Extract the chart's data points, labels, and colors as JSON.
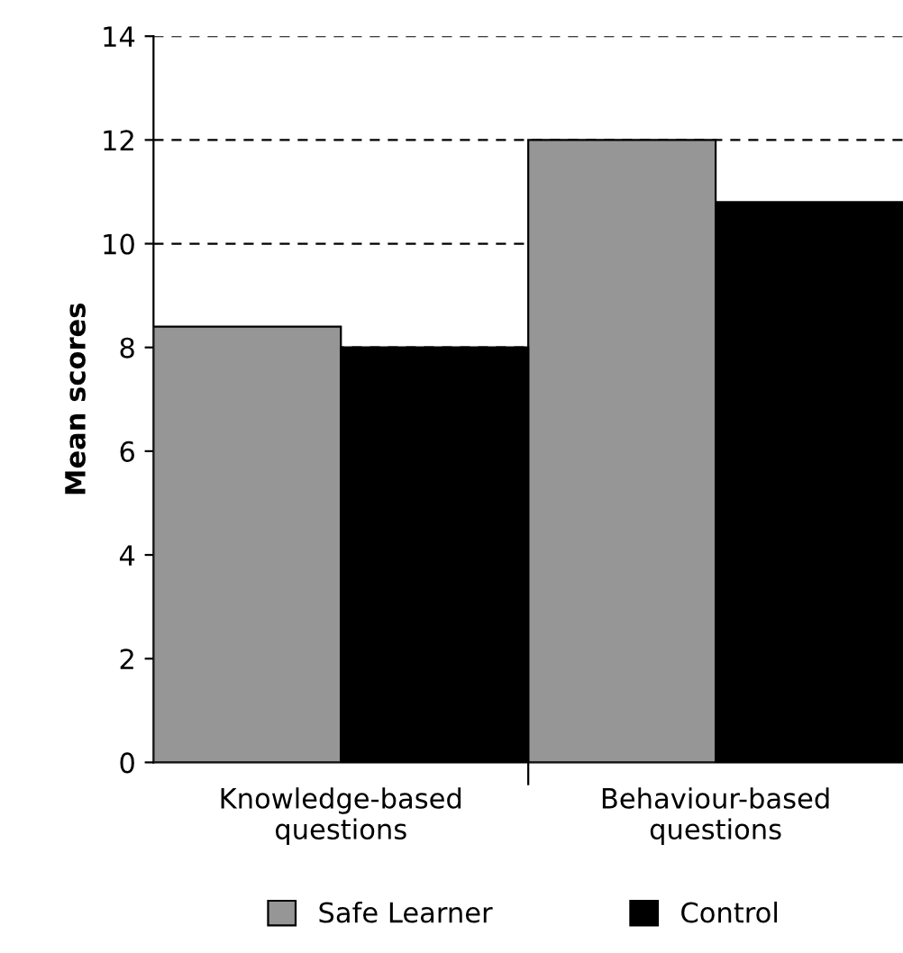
{
  "chart_data": {
    "type": "bar",
    "ylabel": "Mean scores",
    "categories": [
      "Knowledge-based\nquestions",
      "Behaviour-based\nquestions"
    ],
    "series": [
      {
        "name": "Safe Learner",
        "color": "#969696",
        "values": [
          8.4,
          12.0
        ]
      },
      {
        "name": "Control",
        "color": "#000000",
        "values": [
          8.0,
          10.8
        ]
      }
    ],
    "ylim": [
      0,
      14
    ],
    "yticks": [
      0,
      2,
      4,
      6,
      8,
      10,
      12,
      14
    ],
    "grid": "y",
    "legend": "bottom"
  }
}
